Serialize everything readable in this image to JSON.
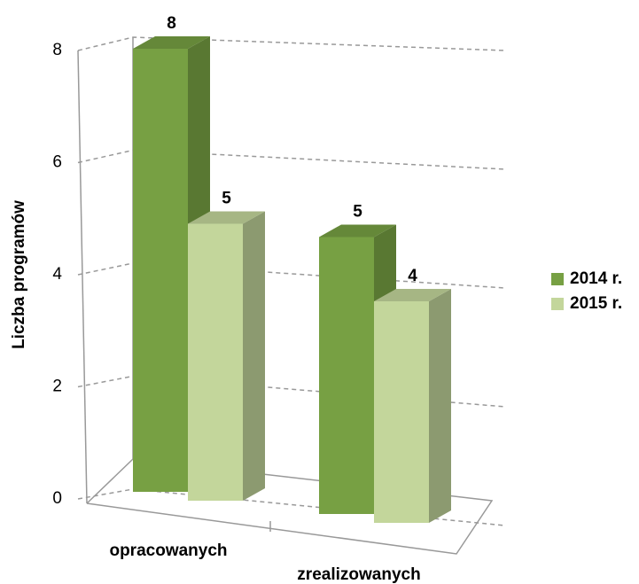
{
  "chart_data": {
    "type": "bar3d",
    "y_label": "Liczba programów",
    "categories": [
      "opracowanych",
      "zrealizowanych"
    ],
    "series": [
      {
        "name": "2014 r.",
        "color": "#77a043",
        "values": [
          8,
          5
        ]
      },
      {
        "name": "2015 r.",
        "color": "#c3d69b",
        "values": [
          5,
          4
        ]
      }
    ],
    "ylim": [
      0,
      8
    ],
    "yticks": [
      0,
      2,
      4,
      6,
      8
    ],
    "grid": true,
    "legend": "right"
  }
}
